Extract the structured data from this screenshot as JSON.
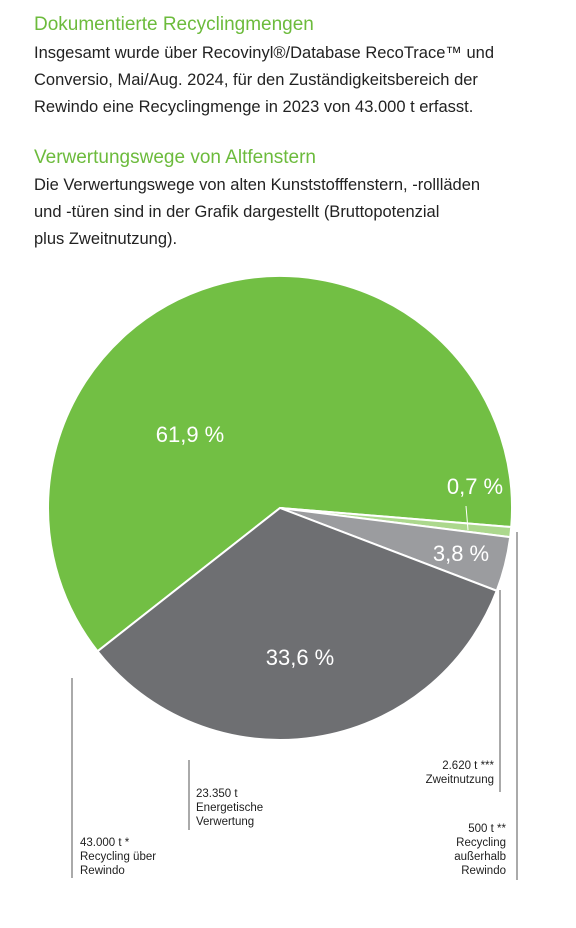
{
  "section1": {
    "title": "Dokumentierte Recyclingmengen",
    "lines": [
      "Insgesamt wurde über Recovinyl®/Database RecoTrace™ und",
      "Conversio, Mai/Aug. 2024, für den Zuständigkeitsbereich der",
      "Rewindo eine Recyclingmenge in 2023 von 43.000 t erfasst."
    ]
  },
  "section2": {
    "title": "Verwertungswege von Altfenstern",
    "lines": [
      "Die Verwertungswege von alten Kunststofffenstern, -rollläden",
      "und -türen sind in der Grafik dargestellt (Bruttopotenzial",
      "plus Zweitnutzung)."
    ]
  },
  "chart_data": {
    "type": "pie",
    "slices": [
      {
        "pct_label": "61,9 %",
        "value": 61.9,
        "color": "#72bf44",
        "annotation": [
          "43.000 t *",
          "Recycling über",
          "Rewindo"
        ]
      },
      {
        "pct_label": "0,7 %",
        "value": 0.7,
        "color": "#acd88d",
        "annotation": [
          "500 t **",
          "Recycling",
          "außerhalb",
          "Rewindo"
        ]
      },
      {
        "pct_label": "3,8 %",
        "value": 3.8,
        "color": "#9b9c9f",
        "annotation": [
          "2.620 t ***",
          "Zweitnutzung"
        ]
      },
      {
        "pct_label": "33,6 %",
        "value": 33.6,
        "color": "#6e6f72",
        "annotation": [
          "23.350 t",
          "Energetische",
          "Verwertung"
        ]
      }
    ]
  }
}
